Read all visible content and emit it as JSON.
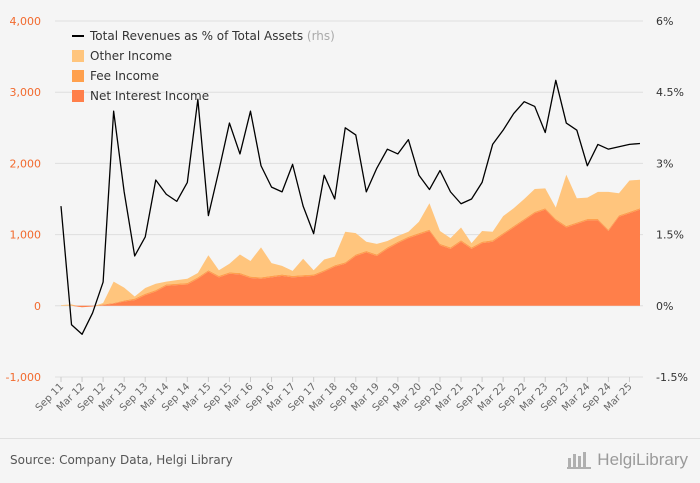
{
  "chart_data": {
    "type": "area",
    "title": "",
    "xlabel": "",
    "ylabel": "",
    "ylim": [
      -1000,
      4000
    ],
    "y2lim": [
      -1.5,
      6
    ],
    "yticks": [
      -1000,
      0,
      1000,
      2000,
      3000,
      4000
    ],
    "ytick_labels": [
      "-1,000",
      "0",
      "1,000",
      "2,000",
      "3,000",
      "4,000"
    ],
    "y2ticks": [
      -1.5,
      0,
      1.5,
      3,
      4.5,
      6
    ],
    "y2tick_labels": [
      "-1.5%",
      "0%",
      "1.5%",
      "3%",
      "4.5%",
      "6%"
    ],
    "xtick_labels": [
      "Sep 11",
      "Mar 12",
      "Sep 12",
      "Mar 13",
      "Sep 13",
      "Mar 14",
      "Sep 14",
      "Mar 15",
      "Sep 15",
      "Mar 16",
      "Sep 16",
      "Mar 17",
      "Sep 17",
      "Mar 18",
      "Sep 18",
      "Mar 19",
      "Sep 19",
      "Mar 20",
      "Sep 20",
      "Mar 21",
      "Sep 21",
      "Mar 22",
      "Sep 22",
      "Mar 23",
      "Sep 23",
      "Mar 24",
      "Sep 24",
      "Mar 25"
    ],
    "grid": true,
    "legend_position": "top-left",
    "x": [
      "Sep 11",
      "Dec 11",
      "Mar 12",
      "Jun 12",
      "Sep 12",
      "Dec 12",
      "Mar 13",
      "Jun 13",
      "Sep 13",
      "Dec 13",
      "Mar 14",
      "Jun 14",
      "Sep 14",
      "Dec 14",
      "Mar 15",
      "Jun 15",
      "Sep 15",
      "Dec 15",
      "Mar 16",
      "Jun 16",
      "Sep 16",
      "Dec 16",
      "Mar 17",
      "Jun 17",
      "Sep 17",
      "Dec 17",
      "Mar 18",
      "Jun 18",
      "Sep 18",
      "Dec 18",
      "Mar 19",
      "Jun 19",
      "Sep 19",
      "Dec 19",
      "Mar 20",
      "Jun 20",
      "Sep 20",
      "Dec 20",
      "Mar 21",
      "Jun 21",
      "Sep 21",
      "Dec 21",
      "Mar 22",
      "Jun 22",
      "Sep 22",
      "Dec 22",
      "Mar 23",
      "Jun 23",
      "Sep 23",
      "Dec 23",
      "Mar 24",
      "Jun 24",
      "Sep 24",
      "Dec 24",
      "Mar 25",
      "Jun 25"
    ],
    "series": [
      {
        "name": "Net Interest Income",
        "type": "area",
        "axis": "left",
        "color": "#ff7f4a",
        "values": [
          0,
          0,
          -20,
          -10,
          10,
          30,
          60,
          80,
          150,
          200,
          280,
          290,
          300,
          380,
          480,
          400,
          450,
          440,
          390,
          380,
          400,
          420,
          400,
          410,
          420,
          480,
          550,
          590,
          700,
          750,
          700,
          800,
          880,
          950,
          1000,
          1050,
          850,
          800,
          900,
          800,
          880,
          900,
          1000,
          1100,
          1200,
          1300,
          1350,
          1200,
          1100,
          1150,
          1200,
          1200,
          1050,
          1250,
          1300,
          1350
        ]
      },
      {
        "name": "Fee Income",
        "type": "area",
        "axis": "left",
        "color": "#ffa04d",
        "values": [
          0,
          0,
          0,
          0,
          10,
          10,
          15,
          20,
          20,
          20,
          20,
          20,
          20,
          20,
          20,
          20,
          20,
          20,
          20,
          20,
          20,
          20,
          20,
          20,
          20,
          20,
          20,
          20,
          20,
          20,
          20,
          20,
          20,
          20,
          20,
          20,
          20,
          20,
          20,
          20,
          20,
          20,
          20,
          20,
          20,
          20,
          20,
          20,
          20,
          20,
          20,
          20,
          20,
          20,
          20,
          20
        ]
      },
      {
        "name": "Other Income",
        "type": "area",
        "axis": "left",
        "color": "#ffc57d",
        "values": [
          10,
          20,
          0,
          0,
          20,
          300,
          180,
          30,
          80,
          90,
          40,
          50,
          60,
          60,
          210,
          80,
          120,
          260,
          220,
          420,
          180,
          120,
          70,
          230,
          60,
          150,
          120,
          430,
          300,
          130,
          150,
          90,
          80,
          70,
          160,
          370,
          180,
          130,
          180,
          60,
          150,
          120,
          240,
          250,
          280,
          320,
          280,
          160,
          720,
          340,
          300,
          380,
          530,
          310,
          440,
          400
        ]
      },
      {
        "name": "Total Revenues as % of Total Assets",
        "type": "line",
        "axis": "right",
        "note": "(rhs)",
        "color": "#000000",
        "values": [
          2.1,
          -0.4,
          -0.6,
          -0.15,
          0.5,
          4.1,
          2.4,
          1.05,
          1.45,
          2.65,
          2.35,
          2.2,
          2.6,
          4.35,
          1.9,
          2.85,
          3.85,
          3.2,
          4.1,
          2.95,
          2.5,
          2.4,
          2.98,
          2.1,
          1.52,
          2.75,
          2.25,
          3.75,
          3.6,
          2.4,
          2.9,
          3.3,
          3.2,
          3.5,
          2.75,
          2.45,
          2.85,
          2.4,
          2.15,
          2.25,
          2.6,
          3.4,
          3.7,
          4.05,
          4.3,
          4.2,
          3.65,
          4.75,
          3.85,
          3.7,
          2.95,
          3.4,
          3.3,
          3.35,
          3.4,
          3.42
        ]
      }
    ]
  },
  "footer": {
    "source": "Source: Company Data, Helgi Library",
    "brand": "HelgiLibrary"
  }
}
